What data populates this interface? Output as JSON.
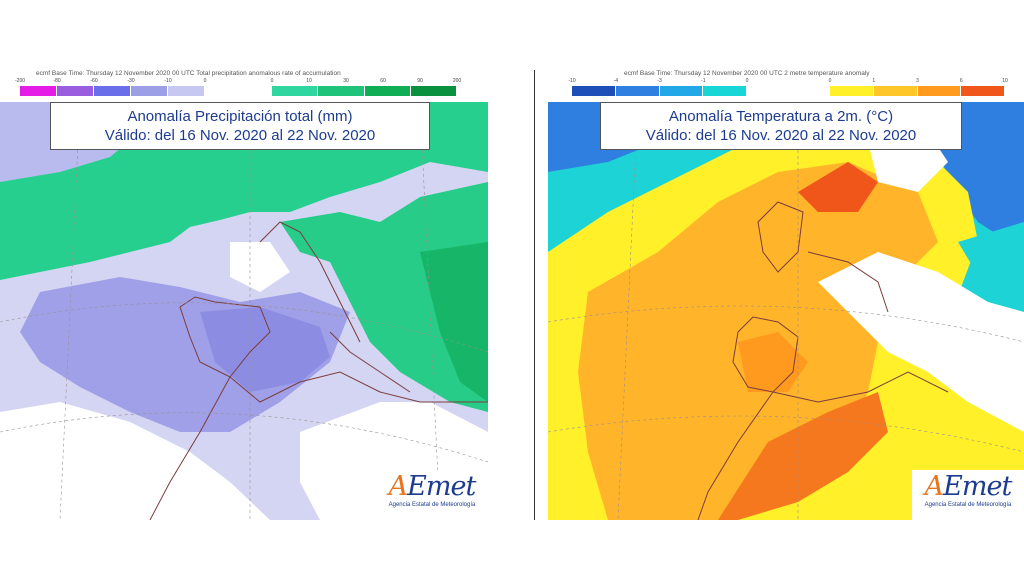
{
  "precip_panel": {
    "header": "ecmf  Base Time: Thursday 12 November 2020 00 UTC Total precipitation anomalous rate of accumulation",
    "title_line1": "Anomalía Precipitación total (mm)",
    "title_line2": "Válido: del 16 Nov. 2020 al 22 Nov. 2020",
    "legend_neg": {
      "ticks": [
        "-200",
        "-80",
        "-60",
        "-30",
        "-10",
        "0"
      ],
      "colors": [
        "#e51ce5",
        "#9b5de0",
        "#6a6ee8",
        "#9d9fe6",
        "#c6c8f2"
      ]
    },
    "legend_pos": {
      "ticks": [
        "0",
        "10",
        "30",
        "60",
        "90",
        "200"
      ],
      "colors": [
        "#2fd6a0",
        "#1fc47a",
        "#10ad55",
        "#0a9140"
      ]
    }
  },
  "temp_panel": {
    "header": "ecmf  Base Time: Thursday 12 November 2020 00 UTC 2 metre temperature anomaly",
    "title_line1": "Anomalía Temperatura a 2m. (°C)",
    "title_line2": "Válido: del 16 Nov. 2020 al 22 Nov. 2020",
    "legend_neg": {
      "ticks": [
        "-10",
        "-4",
        "-3",
        "-1",
        "0"
      ],
      "colors": [
        "#1e4fb8",
        "#2f7fe0",
        "#22a8e6",
        "#19d6d6"
      ]
    },
    "legend_pos": {
      "ticks": [
        "0",
        "1",
        "3",
        "6",
        "10"
      ],
      "colors": [
        "#fff02a",
        "#ffc62a",
        "#ff9a1e",
        "#f0561a"
      ]
    }
  },
  "logo": {
    "word_a": "A",
    "word_rest": "Emet",
    "subtitle": "Agencia Estatal de Meteorología"
  }
}
